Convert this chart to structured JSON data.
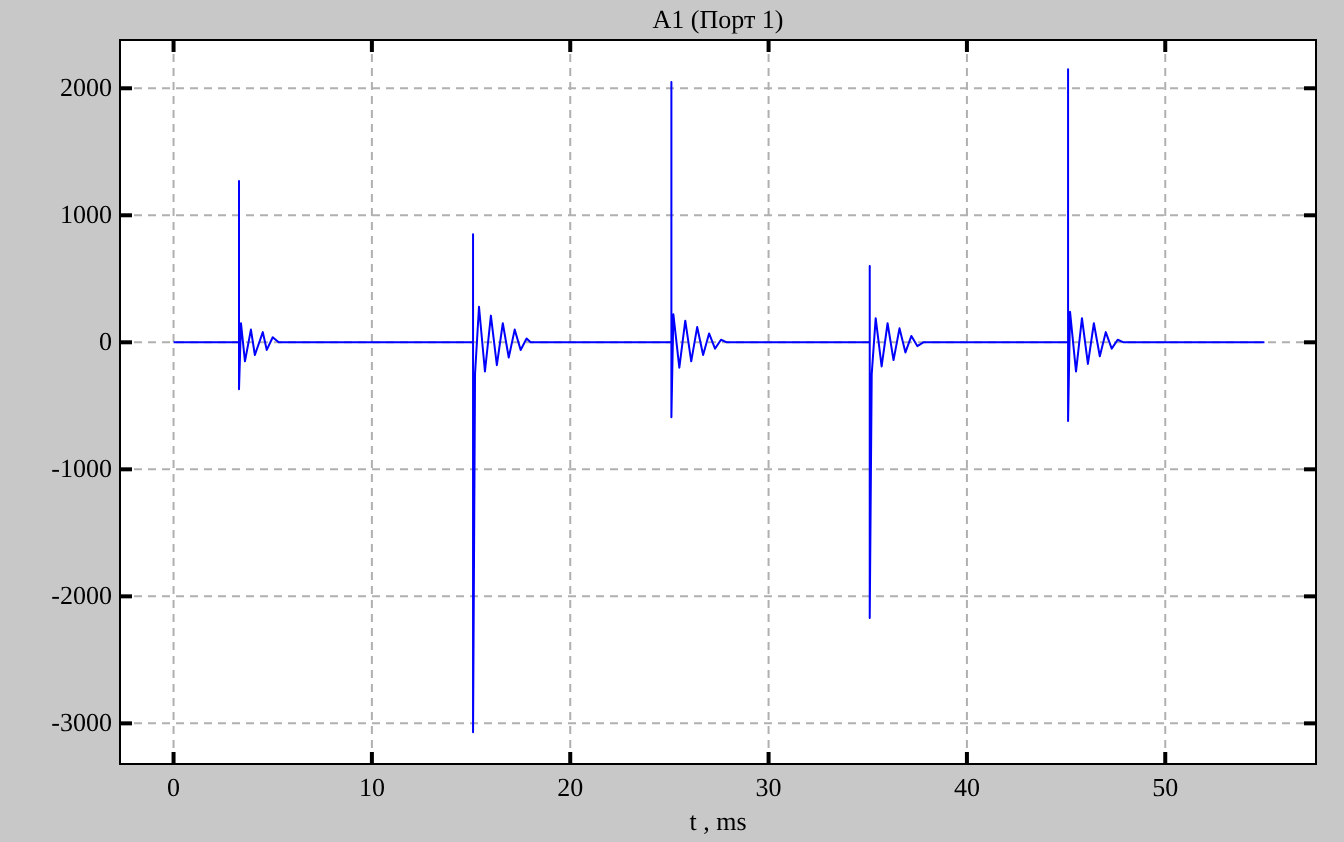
{
  "chart_data": {
    "type": "line",
    "title": "A1 (Порт 1)",
    "xlabel": "t , ms",
    "xlim": [
      -2.7,
      57.6
    ],
    "xticks": [
      0,
      10,
      20,
      30,
      40,
      50
    ],
    "ylim": [
      -3320,
      2380
    ],
    "yticks": [
      -3000,
      -2000,
      -1000,
      0,
      1000,
      2000
    ],
    "grid": true,
    "line_style": "solid",
    "marker": "none",
    "series": [
      {
        "color": "#0000ff",
        "x": [
          0,
          3.3,
          3.3,
          3.3,
          3.4,
          3.6,
          3.9,
          4.1,
          4.5,
          4.7,
          5.0,
          5.3,
          15.1,
          15.1,
          15.1,
          15.2,
          15.4,
          15.7,
          16.0,
          16.3,
          16.6,
          16.9,
          17.2,
          17.5,
          17.8,
          18.0,
          25.1,
          25.1,
          25.1,
          25.2,
          25.5,
          25.8,
          26.1,
          26.4,
          26.7,
          27.0,
          27.3,
          27.6,
          27.9,
          35.1,
          35.1,
          35.1,
          35.2,
          35.4,
          35.7,
          36.0,
          36.3,
          36.6,
          36.9,
          37.2,
          37.5,
          37.8,
          45.1,
          45.1,
          45.1,
          45.2,
          45.5,
          45.8,
          46.1,
          46.4,
          46.7,
          47.0,
          47.3,
          47.6,
          47.9,
          55
        ],
        "values": [
          0,
          0,
          1270,
          -370,
          150,
          -150,
          100,
          -100,
          80,
          -60,
          40,
          0,
          0,
          850,
          -3070,
          -250,
          280,
          -230,
          210,
          -180,
          150,
          -120,
          100,
          -60,
          30,
          0,
          0,
          2050,
          -590,
          220,
          -200,
          170,
          -150,
          120,
          -100,
          70,
          -50,
          20,
          0,
          0,
          600,
          -2170,
          -250,
          190,
          -190,
          150,
          -140,
          110,
          -80,
          50,
          -30,
          0,
          0,
          2150,
          -620,
          240,
          -230,
          190,
          -170,
          150,
          -110,
          80,
          -50,
          20,
          0,
          0
        ]
      }
    ]
  }
}
